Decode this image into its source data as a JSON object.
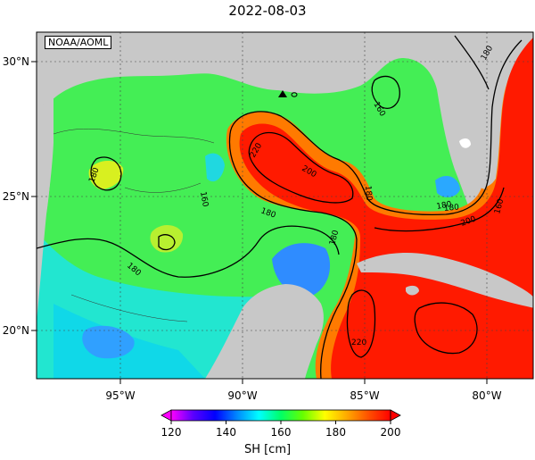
{
  "title": "2022-08-03",
  "credit": "NOAA/AOML",
  "x_ticks": [
    "95°W",
    "90°W",
    "85°W",
    "80°W"
  ],
  "y_ticks": [
    "30°N",
    "25°N",
    "20°N"
  ],
  "contour_labels": [
    "180",
    "180",
    "160",
    "160",
    "180",
    "220",
    "200",
    "180",
    "180",
    "180",
    "180",
    "200",
    "160",
    "180",
    "220"
  ],
  "colorbar": {
    "ticks": [
      "120",
      "140",
      "160",
      "180",
      "200"
    ],
    "unit": "SH [cm]",
    "stops": [
      "#ff00ff",
      "#5a00ff",
      "#0000ff",
      "#0088ff",
      "#00ffff",
      "#00ff66",
      "#66ff00",
      "#ffff00",
      "#ffaa00",
      "#ff5000",
      "#ff0000"
    ]
  },
  "colors": {
    "land": "#c8c8c8",
    "loop_current": "#ff1a00",
    "shelf": "#00f0e0",
    "basin": "#40f060"
  }
}
